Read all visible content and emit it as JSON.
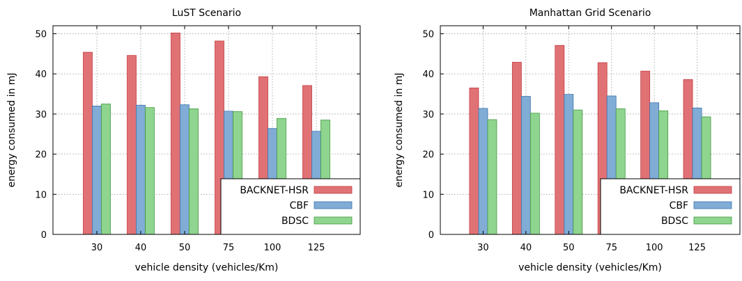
{
  "colors": {
    "s0": "#e07275",
    "s1": "#80acd6",
    "s2": "#8fd48f",
    "s0_stroke": "#c23b3f",
    "s1_stroke": "#3b73ad",
    "s2_stroke": "#3f9a3f"
  },
  "chart_data": [
    {
      "type": "bar",
      "title": "LuST Scenario",
      "xlabel": "vehicle density (vehicles/Km)",
      "ylabel": "energy consumed in mJ",
      "ylim": [
        0,
        52
      ],
      "yticks": [
        0,
        10,
        20,
        30,
        40,
        50
      ],
      "categories": [
        "30",
        "40",
        "50",
        "75",
        "100",
        "125"
      ],
      "grid": true,
      "legend_position": "bottom-right",
      "series": [
        {
          "name": "BACKNET-HSR",
          "values": [
            45.4,
            44.6,
            50.2,
            48.2,
            39.3,
            37.1
          ]
        },
        {
          "name": "CBF",
          "values": [
            32.0,
            32.2,
            32.3,
            30.7,
            26.4,
            25.7
          ]
        },
        {
          "name": "BDSC",
          "values": [
            32.5,
            31.6,
            31.3,
            30.6,
            28.9,
            28.5
          ]
        }
      ]
    },
    {
      "type": "bar",
      "title": "Manhattan Grid Scenario",
      "xlabel": "vehicle density (vehicles/Km)",
      "ylabel": "energy consumed in mJ",
      "ylim": [
        0,
        52
      ],
      "yticks": [
        0,
        10,
        20,
        30,
        40,
        50
      ],
      "categories": [
        "30",
        "40",
        "50",
        "75",
        "100",
        "125"
      ],
      "grid": true,
      "legend_position": "bottom-right",
      "series": [
        {
          "name": "BACKNET-HSR",
          "values": [
            36.5,
            42.9,
            47.1,
            42.8,
            40.7,
            38.6
          ]
        },
        {
          "name": "CBF",
          "values": [
            31.4,
            34.4,
            34.9,
            34.5,
            32.8,
            31.5
          ]
        },
        {
          "name": "BDSC",
          "values": [
            28.6,
            30.2,
            31.0,
            31.3,
            30.8,
            29.3
          ]
        }
      ]
    }
  ]
}
